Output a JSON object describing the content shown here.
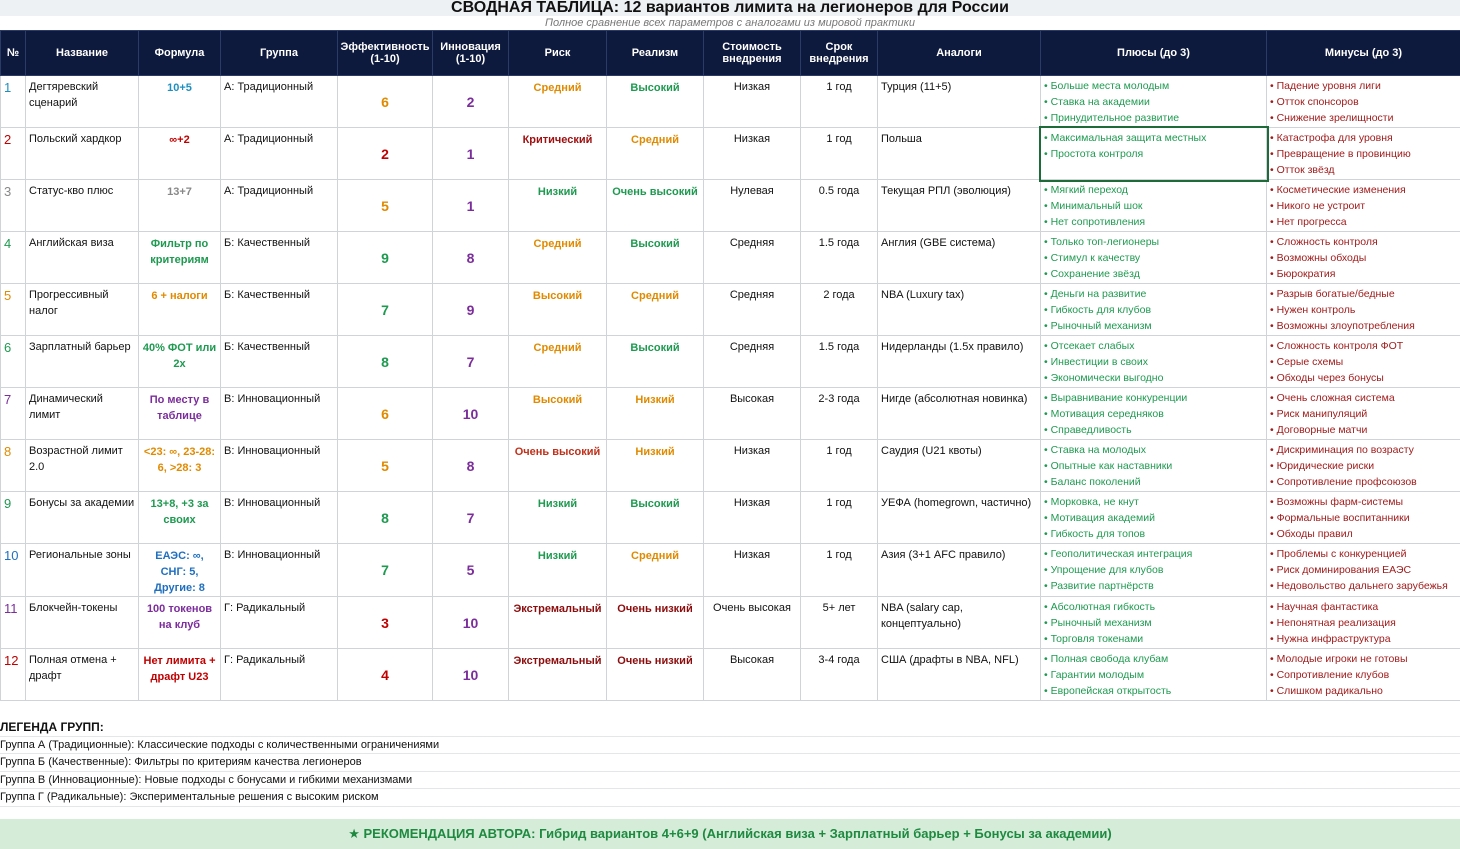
{
  "header": {
    "title": "СВОДНАЯ ТАБЛИЦА: 12 вариантов лимита на легионеров для России",
    "subtitle": "Полное сравнение всех параметров с аналогами из мировой практики"
  },
  "table": {
    "columns": [
      "№",
      "Название",
      "Формула",
      "Группа",
      "Эффективность (1-10)",
      "Инновация (1-10)",
      "Риск",
      "Реализм",
      "Стоимость внедрения",
      "Срок внедрения",
      "Аналоги",
      "Плюсы (до 3)",
      "Минусы (до 3)"
    ],
    "rows": [
      {
        "no": 1,
        "name": "Дегтяревский сценарий",
        "formula": "10+5",
        "group": "А: Традиционный",
        "efficiency": 6,
        "innovation": 2,
        "risk": "Средний",
        "realism": "Высокий",
        "cost": "Низкая",
        "term": "1 год",
        "analogs": "Турция (11+5)",
        "pros": [
          "Больше места молодым",
          "Ставка на академии",
          "Принудительное развитие"
        ],
        "cons": [
          "Падение уровня лиги",
          "Отток спонсоров",
          "Снижение зрелищности"
        ],
        "color": "#1f8fbf",
        "risk_color": "#e08a00",
        "realism_color": "#1e9a50"
      },
      {
        "no": 2,
        "name": "Польский хардкор",
        "formula": "∞+2",
        "group": "А: Традиционный",
        "efficiency": 2,
        "innovation": 1,
        "risk": "Критический",
        "realism": "Средний",
        "cost": "Низкая",
        "term": "1 год",
        "analogs": "Польша",
        "pros": [
          "Максимальная защита местных",
          "Простота контроля"
        ],
        "cons": [
          "Катастрофа для уровня",
          "Превращение в провинцию",
          "Отток звёзд"
        ],
        "color": "#c00000",
        "risk_color": "#a01010",
        "realism_color": "#e08a00"
      },
      {
        "no": 3,
        "name": "Статус-кво плюс",
        "formula": "13+7",
        "group": "А: Традиционный",
        "efficiency": 5,
        "innovation": 1,
        "risk": "Низкий",
        "realism": "Очень высокий",
        "cost": "Нулевая",
        "term": "0.5 года",
        "analogs": "Текущая РПЛ (эволюция)",
        "pros": [
          "Мягкий переход",
          "Минимальный шок",
          "Нет сопротивления"
        ],
        "cons": [
          "Косметические изменения",
          "Никого не устроит",
          "Нет прогресса"
        ],
        "color": "#888888",
        "risk_color": "#1e9a50",
        "realism_color": "#1e9a50"
      },
      {
        "no": 4,
        "name": "Английская виза",
        "formula": "Фильтр по критериям",
        "group": "Б: Качественный",
        "efficiency": 9,
        "innovation": 8,
        "risk": "Средний",
        "realism": "Высокий",
        "cost": "Средняя",
        "term": "1.5 года",
        "analogs": "Англия (GBE система)",
        "pros": [
          "Только топ-легионеры",
          "Стимул к качеству",
          "Сохранение звёзд"
        ],
        "cons": [
          "Сложность контроля",
          "Возможны обходы",
          "Бюрократия"
        ],
        "color": "#1e9a50",
        "risk_color": "#e08a00",
        "realism_color": "#1e9a50"
      },
      {
        "no": 5,
        "name": "Прогрессивный налог",
        "formula": "6 + налоги",
        "group": "Б: Качественный",
        "efficiency": 7,
        "innovation": 9,
        "risk": "Высокий",
        "realism": "Средний",
        "cost": "Средняя",
        "term": "2 года",
        "analogs": "NBA (Luxury tax)",
        "pros": [
          "Деньги на развитие",
          "Гибкость для клубов",
          "Рыночный механизм"
        ],
        "cons": [
          "Разрыв богатые/бедные",
          "Нужен контроль",
          "Возможны злоупотребления"
        ],
        "color": "#e08a00",
        "risk_color": "#e08a00",
        "realism_color": "#e08a00"
      },
      {
        "no": 6,
        "name": "Зарплатный барьер",
        "formula": "40% ФОТ или 2x",
        "group": "Б: Качественный",
        "efficiency": 8,
        "innovation": 7,
        "risk": "Средний",
        "realism": "Высокий",
        "cost": "Средняя",
        "term": "1.5 года",
        "analogs": "Нидерланды (1.5х правило)",
        "pros": [
          "Отсекает слабых",
          "Инвестиции в своих",
          "Экономически выгодно"
        ],
        "cons": [
          "Сложность контроля ФОТ",
          "Серые схемы",
          "Обходы через бонусы"
        ],
        "color": "#1e9a50",
        "risk_color": "#e08a00",
        "realism_color": "#1e9a50"
      },
      {
        "no": 7,
        "name": "Динамический лимит",
        "formula": "По месту в таблице",
        "group": "В: Инновационный",
        "efficiency": 6,
        "innovation": 10,
        "risk": "Высокий",
        "realism": "Низкий",
        "cost": "Высокая",
        "term": "2-3 года",
        "analogs": "Нигде (абсолютная новинка)",
        "pros": [
          "Выравнивание конкуренции",
          "Мотивация середняков",
          "Справедливость"
        ],
        "cons": [
          "Очень сложная система",
          "Риск манипуляций",
          "Договорные матчи"
        ],
        "color": "#7b2d9b",
        "risk_color": "#e08a00",
        "realism_color": "#e08a00"
      },
      {
        "no": 8,
        "name": "Возрастной лимит 2.0",
        "formula": "<23: ∞, 23-28: 6, >28: 3",
        "group": "В: Инновационный",
        "efficiency": 5,
        "innovation": 8,
        "risk": "Очень высокий",
        "realism": "Низкий",
        "cost": "Низкая",
        "term": "1 год",
        "analogs": "Саудия (U21 квоты)",
        "pros": [
          "Ставка на молодых",
          "Опытные как наставники",
          "Баланс поколений"
        ],
        "cons": [
          "Дискриминация по возрасту",
          "Юридические риски",
          "Сопротивление профсоюзов"
        ],
        "color": "#e08a00",
        "risk_color": "#c0301a",
        "realism_color": "#e08a00"
      },
      {
        "no": 9,
        "name": "Бонусы за академии",
        "formula": "13+8, +3 за своих",
        "group": "В: Инновационный",
        "efficiency": 8,
        "innovation": 7,
        "risk": "Низкий",
        "realism": "Высокий",
        "cost": "Низкая",
        "term": "1 год",
        "analogs": "УЕФА (homegrown, частично)",
        "pros": [
          "Морковка, не кнут",
          "Мотивация академий",
          "Гибкость для топов"
        ],
        "cons": [
          "Возможны фарм-системы",
          "Формальные воспитанники",
          "Обходы правил"
        ],
        "color": "#1e9a50",
        "risk_color": "#1e9a50",
        "realism_color": "#1e9a50"
      },
      {
        "no": 10,
        "name": "Региональные зоны",
        "formula": "ЕАЭС: ∞, СНГ: 5, Другие: 8",
        "group": "В: Инновационный",
        "efficiency": 7,
        "innovation": 5,
        "risk": "Низкий",
        "realism": "Средний",
        "cost": "Низкая",
        "term": "1 год",
        "analogs": "Азия (3+1 AFC правило)",
        "pros": [
          "Геополитическая интеграция",
          "Упрощение для клубов",
          "Развитие партнёрств"
        ],
        "cons": [
          "Проблемы с конкуренцией",
          "Риск доминирования ЕАЭС",
          "Недовольство дальнего зарубежья"
        ],
        "color": "#1f6fbf",
        "risk_color": "#1e9a50",
        "realism_color": "#e08a00"
      },
      {
        "no": 11,
        "name": "Блокчейн-токены",
        "formula": "100 токенов на клуб",
        "group": "Г: Радикальный",
        "efficiency": 3,
        "innovation": 10,
        "risk": "Экстремальный",
        "realism": "Очень низкий",
        "cost": "Очень высокая",
        "term": "5+ лет",
        "analogs": "NBA (salary cap, концептуально)",
        "pros": [
          "Абсолютная гибкость",
          "Рыночный механизм",
          "Торговля токенами"
        ],
        "cons": [
          "Научная фантастика",
          "Непонятная реализация",
          "Нужна инфраструктура"
        ],
        "color": "#7b2d9b",
        "risk_color": "#8b0d0d",
        "realism_color": "#8b0d0d"
      },
      {
        "no": 12,
        "name": "Полная отмена + драфт",
        "formula": "Нет лимита + драфт U23",
        "group": "Г: Радикальный",
        "efficiency": 4,
        "innovation": 10,
        "risk": "Экстремальный",
        "realism": "Очень низкий",
        "cost": "Высокая",
        "term": "3-4 года",
        "analogs": "США (драфты в NBA, NFL)",
        "pros": [
          "Полная свобода клубам",
          "Гарантии молодым",
          "Европейская открытость"
        ],
        "cons": [
          "Молодые игроки не готовы",
          "Сопротивление клубов",
          "Слишком радикально"
        ],
        "color": "#c00000",
        "risk_color": "#8b0d0d",
        "realism_color": "#8b0d0d"
      }
    ]
  },
  "legend": {
    "title": "ЛЕГЕНДА ГРУПП:",
    "items": [
      "Группа А (Традиционные): Классические подходы с количественными ограничениями",
      "Группа Б (Качественные): Фильтры по критериям качества легионеров",
      "Группа В (Инновационные): Новые подходы с бонусами и гибкими механизмами",
      "Группа Г (Радикальные): Экспериментальные решения с высоким риском"
    ]
  },
  "recommendation": "★ РЕКОМЕНДАЦИЯ АВТОРА: Гибрид вариантов 4+6+9 (Английская виза + Зарплатный барьер + Бонусы за академии)"
}
